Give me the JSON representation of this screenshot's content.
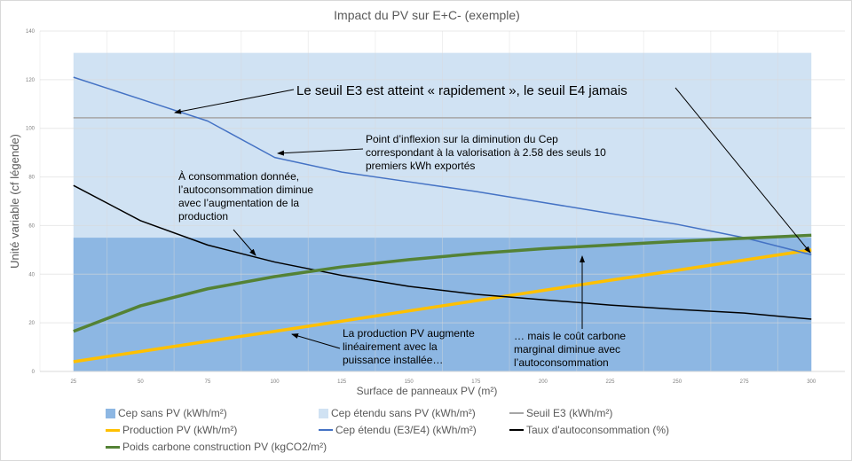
{
  "chart_data": {
    "type": "line",
    "title": "Impact du PV sur E+C- (exemple)",
    "xlabel": "Surface de panneaux PV (m²)",
    "ylabel": "Unité variable (cf légende)",
    "ylim": [
      0,
      140
    ],
    "yticks": [
      0,
      20,
      40,
      60,
      80,
      100,
      120,
      140
    ],
    "grid": true,
    "legend_position": "bottom",
    "categories": [
      25,
      50,
      75,
      100,
      125,
      150,
      175,
      200,
      225,
      250,
      275,
      300
    ],
    "series": [
      {
        "name": "Cep sans PV (kWh/m²)",
        "kind": "area",
        "color": "#8db7e3",
        "values": [
          55,
          55,
          55,
          55,
          55,
          55,
          55,
          55,
          55,
          55,
          55,
          55
        ]
      },
      {
        "name": "Cep étendu sans PV (kWh/m²)",
        "kind": "area",
        "color": "#d0e2f3",
        "values": [
          131,
          131,
          131,
          131,
          131,
          131,
          131,
          131,
          131,
          131,
          131,
          131
        ]
      },
      {
        "name": "Seuil E3 (kWh/m²)",
        "kind": "line",
        "color": "#a6a6a6",
        "width": 1.5,
        "values": [
          104.3,
          104.3,
          104.3,
          104.3,
          104.3,
          104.3,
          104.3,
          104.3,
          104.3,
          104.3,
          104.3,
          104.3
        ]
      },
      {
        "name": "Production PV (kWh/m²)",
        "kind": "line",
        "color": "#ffc000",
        "width": 3.5,
        "values": [
          4,
          8.2,
          12.4,
          16.5,
          20.7,
          24.9,
          29.1,
          33.3,
          37.5,
          41.6,
          45.8,
          50
        ]
      },
      {
        "name": "Cep étendu (E3/E4) (kWh/m²)",
        "kind": "line",
        "color": "#4472c4",
        "width": 1.5,
        "values": [
          121,
          112,
          103,
          88,
          82,
          78,
          74,
          69.5,
          65,
          60.5,
          55,
          48
        ]
      },
      {
        "name": "Taux d'autoconsommation (%)",
        "kind": "line",
        "color": "#000000",
        "width": 1.5,
        "values": [
          76.5,
          62,
          52,
          45,
          39.5,
          35,
          31.7,
          29.5,
          27.3,
          25.5,
          24,
          21.5
        ]
      },
      {
        "name": "Poids carbone construction PV (kgCO2/m²)",
        "kind": "line",
        "color": "#548235",
        "width": 3.5,
        "values": [
          16.5,
          27,
          34,
          39,
          43,
          46,
          48.5,
          50.5,
          52,
          53.5,
          54.8,
          56
        ]
      }
    ],
    "annotations": [
      {
        "lines": [
          "Le seuil E3 est atteint « rapidement », le seuil E4 jamais"
        ]
      },
      {
        "lines": [
          "Point d’inflexion sur la diminution du Cep",
          "correspondant à la valorisation à 2.58 des seuls 10",
          "premiers kWh exportés"
        ]
      },
      {
        "lines": [
          "À consommation donnée,",
          "l’autoconsommation diminue",
          "avec l’augmentation de la",
          "production"
        ]
      },
      {
        "lines": [
          "La production PV augmente",
          "linéairement avec la",
          "puissance installée…"
        ]
      },
      {
        "lines": [
          "… mais le coût carbone",
          "marginal diminue avec",
          "l’autoconsommation"
        ]
      }
    ]
  }
}
